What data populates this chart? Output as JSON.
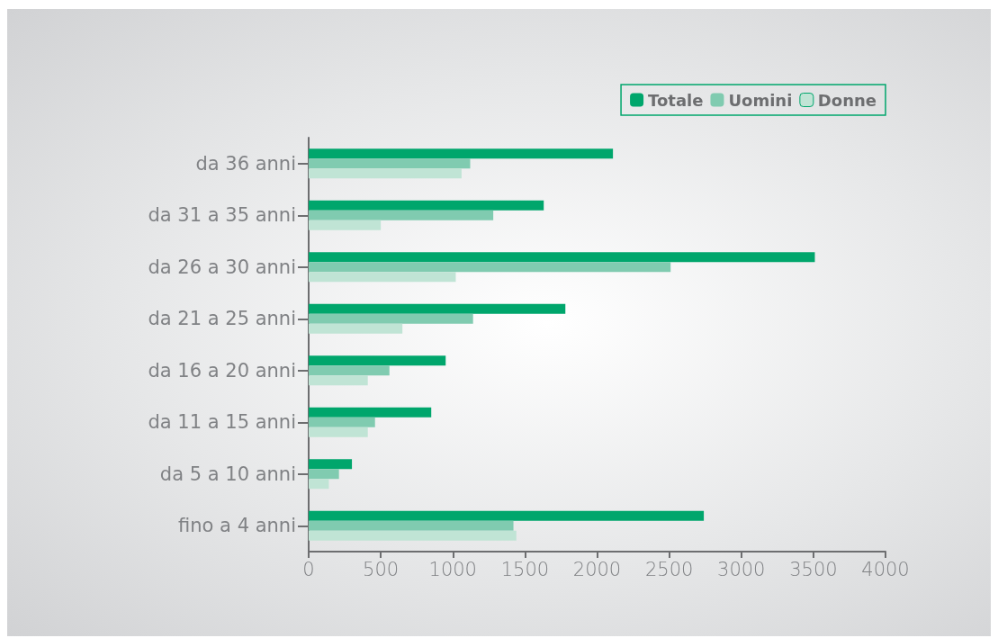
{
  "chart_data": {
    "type": "bar",
    "orientation": "horizontal",
    "categories": [
      "da 36 anni",
      "da 31 a 35 anni",
      "da 26 a 30 anni",
      "da 21 a 25 anni",
      "da 16 a 20 anni",
      "da 11 a 15 anni",
      "da 5 a 10 anni",
      "fino a 4 anni"
    ],
    "series": [
      {
        "name": "Totale",
        "color": "#00a66c",
        "values": [
          2110,
          1630,
          3510,
          1780,
          950,
          850,
          300,
          2740
        ]
      },
      {
        "name": "Uomini",
        "color": "#80cbb0",
        "values": [
          1120,
          1280,
          2510,
          1140,
          560,
          460,
          210,
          1420
        ]
      },
      {
        "name": "Donne",
        "color": "#c0e4d5",
        "values": [
          1060,
          500,
          1020,
          650,
          410,
          410,
          140,
          1440
        ]
      }
    ],
    "xlim": [
      0,
      4000
    ],
    "xticks": [
      0,
      500,
      1000,
      1500,
      2000,
      2500,
      3000,
      3500,
      4000
    ],
    "grid": false,
    "legend": "top right"
  }
}
